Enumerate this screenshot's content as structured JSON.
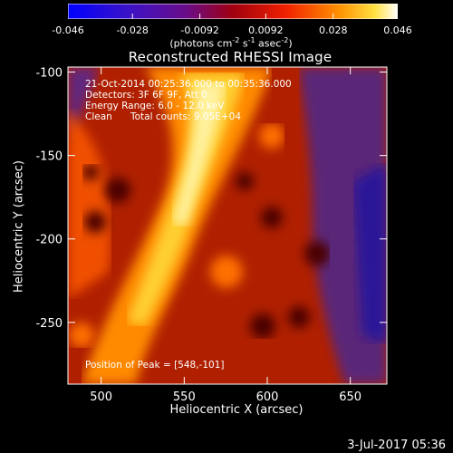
{
  "chart_data": {
    "type": "heatmap",
    "title": "Reconstructed RHESSI Image",
    "xlabel": "Heliocentric X (arcsec)",
    "ylabel": "Heliocentric Y (arcsec)",
    "xlim": [
      480,
      672
    ],
    "ylim": [
      -287,
      -97
    ],
    "xticks": [
      500,
      550,
      600,
      650
    ],
    "yticks": [
      -100,
      -150,
      -200,
      -250
    ],
    "colorbar": {
      "ticks": [
        "-0.046",
        "-0.028",
        "-0.0092",
        "0.0092",
        "0.028",
        "0.046"
      ],
      "range": [
        -0.046,
        0.046
      ],
      "units_prefix": "(photons cm",
      "units_exp1": "-2",
      "units_mid": " s",
      "units_exp2": "-1",
      "units_suffix": " asec",
      "units_exp3": "-2",
      "units_close": ")"
    },
    "annotations": {
      "time_range": "21-Oct-2014 00:25:36.000 to 00:35:36.000",
      "detectors": "Detectors: 3F 6F 9F, Att 0",
      "energy": "Energy Range: 6.0 - 12.0 keV",
      "method": "Clean",
      "counts": "Total counts: 9.05E+04",
      "peak": "Position of Peak = [548,-101]"
    },
    "peak_position": [
      548,
      -101
    ],
    "grid": false
  },
  "footer": {
    "date_stamp": "3-Jul-2017 05:36"
  }
}
